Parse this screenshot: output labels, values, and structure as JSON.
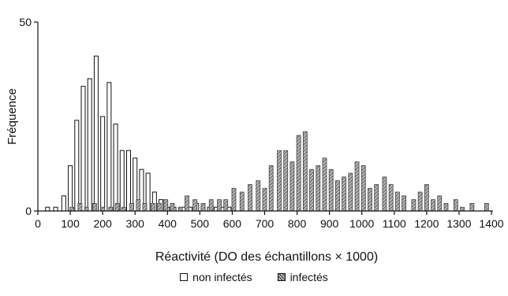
{
  "chart_data": {
    "type": "bar",
    "xlabel": "Réactivité (DO des échantillons × 1000)",
    "ylabel": "Fréquence",
    "xlim": [
      0,
      1400
    ],
    "ylim": [
      0,
      50
    ],
    "x_ticks": [
      0,
      100,
      200,
      300,
      400,
      500,
      600,
      700,
      800,
      900,
      1000,
      1100,
      1200,
      1300,
      1400
    ],
    "y_ticks": [
      0,
      50
    ],
    "series": [
      {
        "name": "non infectés",
        "style": "white",
        "x": [
          30,
          55,
          80,
          100,
          120,
          140,
          160,
          180,
          200,
          220,
          240,
          260,
          280,
          300,
          320,
          340,
          360,
          380,
          400,
          420,
          450,
          470,
          490,
          510,
          530,
          550,
          570,
          590
        ],
        "values": [
          1,
          1,
          4,
          12,
          24,
          33,
          35,
          41,
          25,
          34,
          23,
          16,
          16,
          14,
          11,
          10,
          5,
          3,
          1,
          1,
          1,
          1,
          2,
          1,
          1,
          1,
          1,
          1
        ]
      },
      {
        "name": "infectés",
        "style": "hatched",
        "x": [
          105,
          130,
          150,
          175,
          200,
          225,
          245,
          265,
          290,
          310,
          330,
          355,
          375,
          395,
          415,
          440,
          460,
          485,
          510,
          535,
          560,
          580,
          605,
          630,
          655,
          680,
          700,
          720,
          745,
          765,
          785,
          805,
          825,
          845,
          865,
          885,
          905,
          925,
          945,
          965,
          985,
          1005,
          1025,
          1045,
          1070,
          1090,
          1110,
          1130,
          1160,
          1180,
          1200,
          1220,
          1240,
          1260,
          1290,
          1310,
          1340,
          1385
        ],
        "values": [
          1,
          2,
          1,
          2,
          1,
          1,
          2,
          1,
          2,
          3,
          2,
          2,
          2,
          3,
          2,
          1,
          4,
          3,
          2,
          3,
          3,
          3,
          6,
          5,
          7,
          8,
          6,
          12,
          16,
          16,
          13,
          20,
          21,
          11,
          12,
          14,
          11,
          8,
          9,
          10,
          13,
          12,
          6,
          7,
          9,
          7,
          5,
          4,
          3,
          5,
          7,
          3,
          4,
          2,
          3,
          1,
          2,
          2
        ]
      }
    ]
  },
  "legend": {
    "non_infected_label": "non infectés",
    "infected_label": "infectés"
  }
}
